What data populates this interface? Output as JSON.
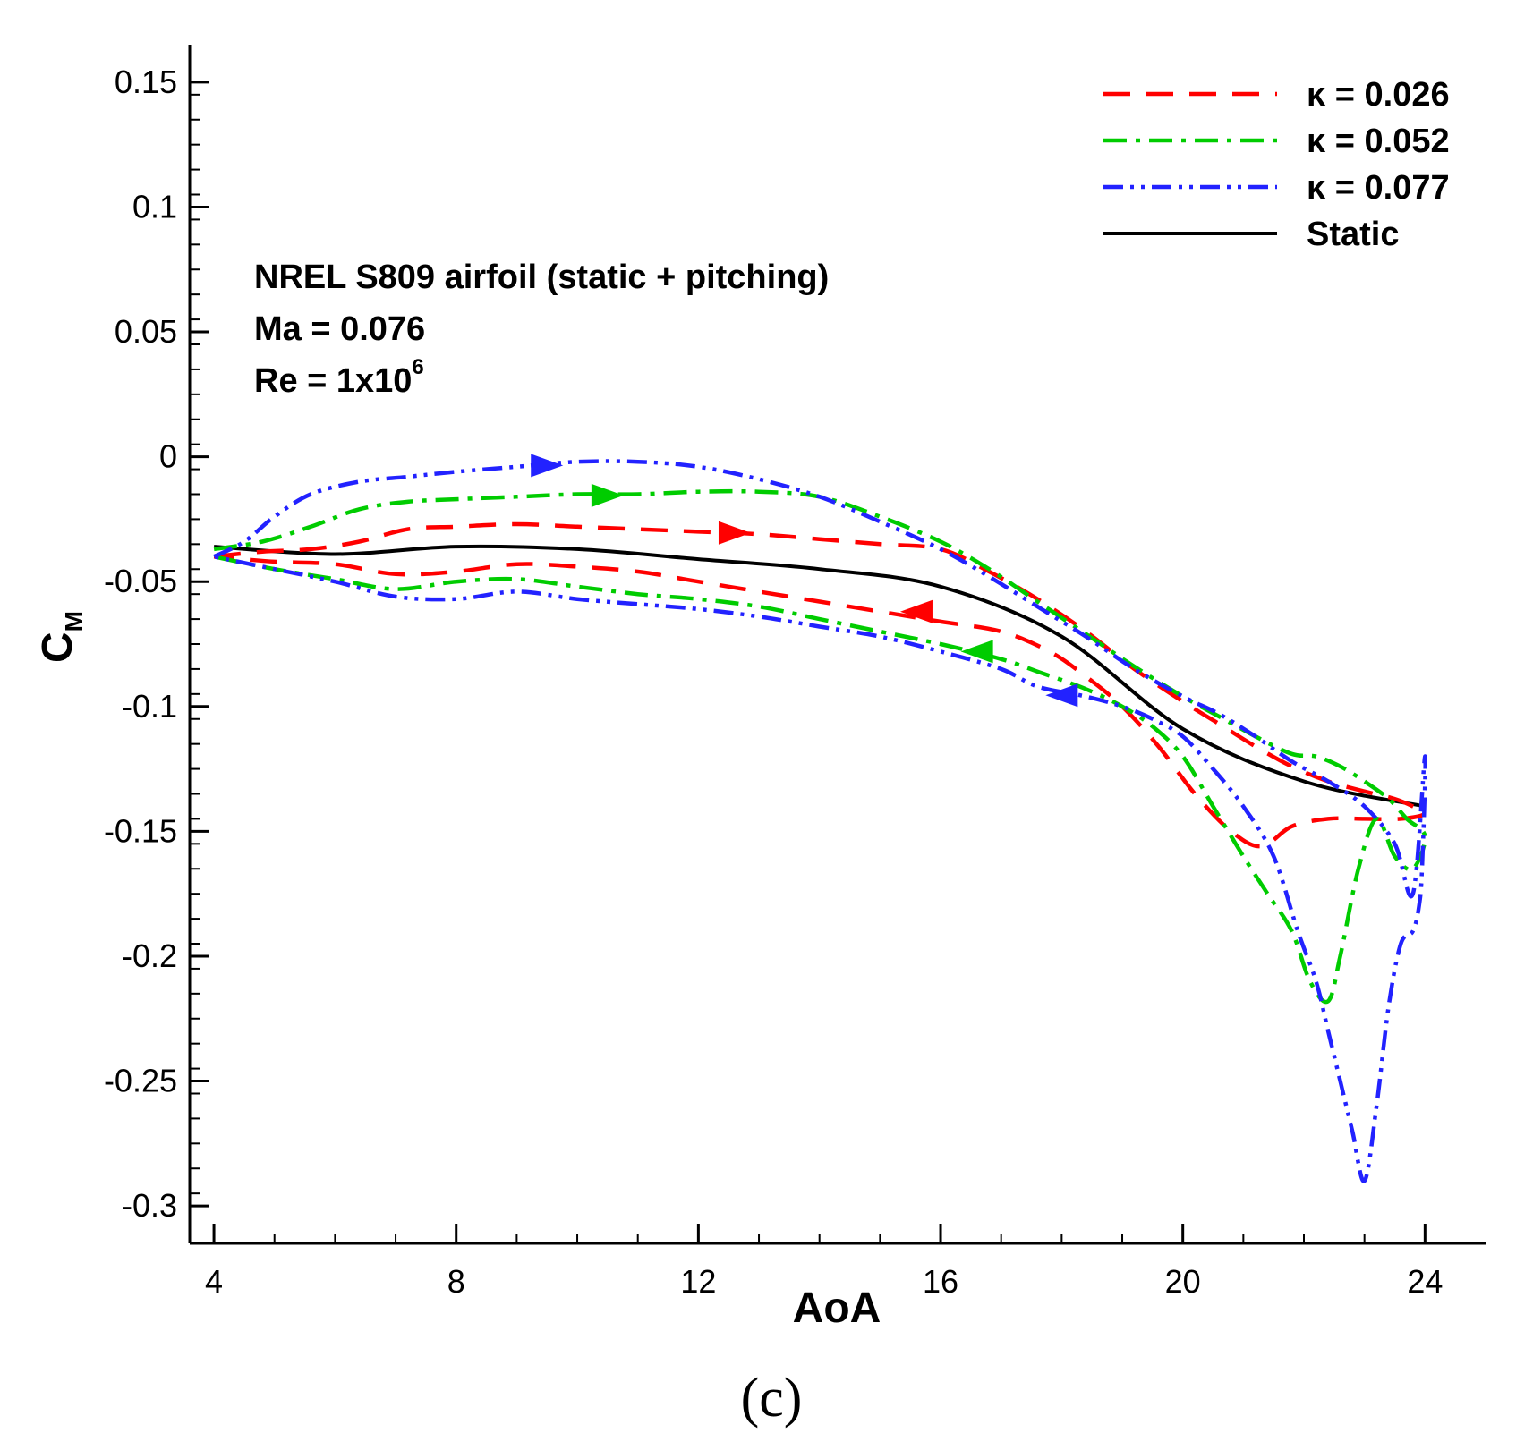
{
  "chart_data": {
    "type": "line",
    "title": "",
    "xlabel": "AoA",
    "ylabel": "C",
    "ylabel_sub": "M",
    "xlim": [
      3.6,
      25
    ],
    "ylim": [
      -0.315,
      0.165
    ],
    "x_ticks": [
      4,
      8,
      12,
      16,
      20,
      24
    ],
    "x_tick_labels": [
      "4",
      "8",
      "12",
      "16",
      "20",
      "24"
    ],
    "y_ticks": [
      0.15,
      0.1,
      0.05,
      0,
      -0.05,
      -0.1,
      -0.15,
      -0.2,
      -0.25,
      -0.3
    ],
    "y_tick_labels": [
      "0.15",
      "0.1",
      "0.05",
      "0",
      "-0.05",
      "-0.1",
      "-0.15",
      "-0.2",
      "-0.25",
      "-0.3"
    ],
    "grid": false,
    "legend_position": "top-right",
    "annotations": {
      "line1": "NREL S809 airfoil (static + pitching)",
      "line2": "Ma = 0.076",
      "line3_prefix": "Re = 1x10",
      "line3_sup": "6"
    },
    "panel_label": "(c)",
    "series": [
      {
        "name": "κ = 0.026",
        "color": "#ff0000",
        "style": "dashed",
        "x": [
          4,
          4.8,
          5.6,
          6.4,
          7.2,
          8,
          9,
          10,
          11,
          12,
          13,
          14,
          15,
          16,
          16.8,
          17.6,
          18.4,
          19.2,
          20,
          20.6,
          21.2,
          21.8,
          22.4,
          23,
          23.5,
          23.8,
          24,
          23.6,
          23,
          22.4,
          21.8,
          21.3,
          20.8,
          20.2,
          19.6,
          19,
          18.4,
          17.8,
          17,
          16,
          15,
          14,
          13,
          12,
          11,
          10,
          9,
          8,
          7,
          6,
          5,
          4
        ],
        "y": [
          -0.04,
          -0.038,
          -0.037,
          -0.034,
          -0.029,
          -0.028,
          -0.027,
          -0.028,
          -0.029,
          -0.03,
          -0.031,
          -0.033,
          -0.035,
          -0.037,
          -0.046,
          -0.057,
          -0.07,
          -0.085,
          -0.098,
          -0.107,
          -0.116,
          -0.124,
          -0.13,
          -0.134,
          -0.137,
          -0.14,
          -0.143,
          -0.145,
          -0.145,
          -0.145,
          -0.148,
          -0.156,
          -0.15,
          -0.135,
          -0.116,
          -0.1,
          -0.088,
          -0.078,
          -0.07,
          -0.066,
          -0.062,
          -0.058,
          -0.054,
          -0.05,
          -0.046,
          -0.044,
          -0.043,
          -0.046,
          -0.047,
          -0.043,
          -0.042,
          -0.04
        ],
        "arrows": [
          {
            "x": 12.6,
            "y": -0.0305,
            "dir": "right"
          },
          {
            "x": 15.6,
            "y": -0.062,
            "dir": "left"
          }
        ]
      },
      {
        "name": "κ = 0.052",
        "color": "#00cc00",
        "style": "dashdot",
        "x": [
          4,
          4.8,
          5.6,
          6.4,
          7.2,
          8,
          9,
          10,
          11,
          12,
          13,
          14,
          15,
          16,
          16.8,
          17.6,
          18.4,
          19.2,
          20,
          20.6,
          21.2,
          21.8,
          22.2,
          22.6,
          23,
          23.4,
          23.7,
          24,
          23.8,
          23.5,
          23.2,
          22.9,
          22.6,
          22.4,
          22.1,
          21.8,
          21.4,
          21,
          20.5,
          20,
          19.5,
          19,
          18.4,
          17.6,
          17,
          16,
          15,
          14,
          13,
          12,
          11,
          10,
          9,
          8,
          7,
          6,
          5,
          4
        ],
        "y": [
          -0.037,
          -0.034,
          -0.028,
          -0.021,
          -0.018,
          -0.017,
          -0.016,
          -0.015,
          -0.015,
          -0.014,
          -0.014,
          -0.016,
          -0.024,
          -0.034,
          -0.045,
          -0.058,
          -0.071,
          -0.084,
          -0.096,
          -0.104,
          -0.112,
          -0.119,
          -0.12,
          -0.124,
          -0.13,
          -0.137,
          -0.145,
          -0.152,
          -0.165,
          -0.16,
          -0.145,
          -0.165,
          -0.2,
          -0.218,
          -0.21,
          -0.19,
          -0.175,
          -0.16,
          -0.14,
          -0.12,
          -0.108,
          -0.1,
          -0.093,
          -0.086,
          -0.081,
          -0.075,
          -0.07,
          -0.065,
          -0.06,
          -0.057,
          -0.055,
          -0.052,
          -0.049,
          -0.05,
          -0.053,
          -0.049,
          -0.045,
          -0.04
        ],
        "arrows": [
          {
            "x": 10.5,
            "y": -0.0155,
            "dir": "right"
          },
          {
            "x": 16.6,
            "y": -0.078,
            "dir": "left"
          }
        ]
      },
      {
        "name": "κ = 0.077",
        "color": "#2222ff",
        "style": "dashdotdot",
        "x": [
          4,
          4.5,
          5,
          5.6,
          6.4,
          7.2,
          8,
          9,
          10,
          11,
          12,
          13,
          14,
          15,
          16,
          16.8,
          17.6,
          18.4,
          19.2,
          20,
          20.6,
          21.2,
          21.8,
          22.4,
          23,
          23.5,
          23.8,
          24,
          23.95,
          23.9,
          23.8,
          23.6,
          23.4,
          23.2,
          23,
          22.8,
          22.6,
          22.4,
          22.2,
          21.9,
          21.5,
          21,
          20.5,
          20,
          19.5,
          19,
          18.4,
          17.6,
          17,
          16,
          15,
          14,
          13,
          12,
          11,
          10,
          9,
          8,
          7,
          6,
          5,
          4
        ],
        "y": [
          -0.04,
          -0.034,
          -0.024,
          -0.015,
          -0.01,
          -0.008,
          -0.006,
          -0.004,
          -0.002,
          -0.002,
          -0.004,
          -0.009,
          -0.016,
          -0.026,
          -0.037,
          -0.048,
          -0.06,
          -0.072,
          -0.085,
          -0.096,
          -0.103,
          -0.112,
          -0.122,
          -0.13,
          -0.14,
          -0.155,
          -0.175,
          -0.12,
          -0.165,
          -0.18,
          -0.19,
          -0.195,
          -0.22,
          -0.26,
          -0.29,
          -0.27,
          -0.25,
          -0.23,
          -0.21,
          -0.19,
          -0.16,
          -0.14,
          -0.125,
          -0.112,
          -0.105,
          -0.1,
          -0.096,
          -0.092,
          -0.085,
          -0.078,
          -0.072,
          -0.068,
          -0.064,
          -0.061,
          -0.059,
          -0.057,
          -0.054,
          -0.057,
          -0.056,
          -0.05,
          -0.045,
          -0.04
        ],
        "arrows": [
          {
            "x": 9.5,
            "y": -0.0035,
            "dir": "right"
          },
          {
            "x": 18.0,
            "y": -0.0955,
            "dir": "left"
          }
        ]
      },
      {
        "name": "Static",
        "color": "#000000",
        "style": "solid",
        "x": [
          4,
          6,
          8,
          10,
          12,
          14,
          16,
          18,
          20,
          22,
          24
        ],
        "y": [
          -0.036,
          -0.039,
          -0.036,
          -0.037,
          -0.041,
          -0.045,
          -0.052,
          -0.072,
          -0.109,
          -0.13,
          -0.14
        ],
        "arrows": []
      }
    ]
  }
}
